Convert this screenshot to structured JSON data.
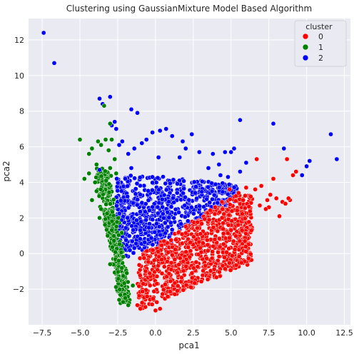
{
  "chart_data": {
    "type": "scatter",
    "title": "Clustering using GaussianMixture Model Based Algorithm",
    "xlabel": "pca1",
    "ylabel": "pca2",
    "xlim": [
      -8.4,
      12.9
    ],
    "ylim": [
      -4.0,
      13.2
    ],
    "xticks": [
      -7.5,
      -5.0,
      -2.5,
      0.0,
      2.5,
      5.0,
      7.5,
      10.0,
      12.5
    ],
    "xtick_labels": [
      "−7.5",
      "−5.0",
      "−2.5",
      "0.0",
      "2.5",
      "5.0",
      "7.5",
      "10.0",
      "12.5"
    ],
    "yticks": [
      -2,
      0,
      2,
      4,
      6,
      8,
      10,
      12
    ],
    "ytick_labels": [
      "−2",
      "0",
      "2",
      "4",
      "6",
      "8",
      "10",
      "12"
    ],
    "grid": true,
    "background": "#eaeaf2",
    "legend": {
      "title": "cluster",
      "position": "top-right",
      "entries": [
        "0",
        "1",
        "2"
      ]
    },
    "series": [
      {
        "name": "0",
        "color": "#ff0000",
        "regions": [
          {
            "count": 900,
            "x": [
              -1.2,
              6.0
            ],
            "yrange": "between",
            "lower": [
              -3.2,
              -1.0
            ],
            "upper": [
              0.0,
              1.5
            ],
            "note": "red wedge"
          }
        ],
        "points": [
          [
            6.6,
            3.6
          ],
          [
            7.0,
            3.8
          ],
          [
            7.4,
            3.0
          ],
          [
            7.6,
            3.3
          ],
          [
            8.0,
            3.1
          ],
          [
            8.4,
            2.9
          ],
          [
            8.2,
            2.1
          ],
          [
            8.6,
            2.8
          ],
          [
            8.9,
            3.0
          ],
          [
            8.7,
            5.3
          ],
          [
            9.3,
            4.6
          ],
          [
            9.1,
            4.4
          ],
          [
            7.8,
            4.2
          ],
          [
            7.5,
            2.6
          ],
          [
            6.9,
            2.7
          ],
          [
            6.3,
            3.2
          ],
          [
            5.8,
            3.0
          ],
          [
            6.0,
            3.7
          ],
          [
            5.5,
            3.4
          ],
          [
            4.9,
            3.6
          ],
          [
            4.4,
            2.9
          ],
          [
            6.7,
            5.3
          ],
          [
            7.3,
            2.5
          ],
          [
            8.8,
            3.1
          ],
          [
            -1.2,
            -2.9
          ],
          [
            -1.0,
            -3.1
          ],
          [
            0.3,
            -3.1
          ],
          [
            0.0,
            -3.2
          ]
        ]
      },
      {
        "name": "1",
        "color": "#008000",
        "regions": [
          {
            "count": 380,
            "note": "green strip"
          }
        ],
        "points": [
          [
            -3.4,
            8.3
          ],
          [
            -3.0,
            7.3
          ],
          [
            -3.3,
            6.4
          ],
          [
            -3.8,
            6.3
          ],
          [
            -3.6,
            6.1
          ],
          [
            -4.4,
            5.6
          ],
          [
            -4.2,
            5.9
          ],
          [
            -5.0,
            6.4
          ],
          [
            -4.7,
            4.2
          ],
          [
            -4.4,
            4.5
          ],
          [
            -4.0,
            4.0
          ],
          [
            -3.9,
            3.5
          ],
          [
            -4.2,
            3.0
          ],
          [
            -3.6,
            2.5
          ],
          [
            -2.9,
            6.4
          ],
          [
            -3.1,
            5.8
          ],
          [
            -2.7,
            5.3
          ],
          [
            -3.0,
            4.8
          ],
          [
            -2.6,
            4.5
          ],
          [
            -3.9,
            5.0
          ],
          [
            -3.7,
            2.0
          ],
          [
            -1.8,
            -2.9
          ],
          [
            -2.0,
            -2.5
          ],
          [
            -1.5,
            -1.8
          ],
          [
            -3.0,
            -0.6
          ]
        ]
      },
      {
        "name": "2",
        "color": "#0000ff",
        "regions": [
          {
            "count": 750,
            "note": "blue fan"
          }
        ],
        "points": [
          [
            -7.4,
            12.4
          ],
          [
            -6.7,
            10.7
          ],
          [
            -3.7,
            8.7
          ],
          [
            -3.0,
            8.8
          ],
          [
            -3.5,
            8.4
          ],
          [
            -2.7,
            7.4
          ],
          [
            -2.9,
            7.2
          ],
          [
            -2.6,
            7.0
          ],
          [
            -1.6,
            8.1
          ],
          [
            -1.2,
            7.9
          ],
          [
            -2.2,
            6.3
          ],
          [
            -2.4,
            6.1
          ],
          [
            -1.8,
            5.6
          ],
          [
            -1.4,
            5.9
          ],
          [
            -0.9,
            6.2
          ],
          [
            -0.6,
            6.4
          ],
          [
            -0.2,
            6.8
          ],
          [
            0.3,
            6.9
          ],
          [
            0.7,
            7.0
          ],
          [
            1.1,
            6.6
          ],
          [
            1.8,
            6.3
          ],
          [
            2.4,
            6.7
          ],
          [
            2.0,
            5.9
          ],
          [
            1.6,
            5.4
          ],
          [
            2.9,
            5.7
          ],
          [
            3.5,
            4.8
          ],
          [
            3.8,
            5.6
          ],
          [
            4.2,
            5.0
          ],
          [
            4.6,
            5.7
          ],
          [
            5.2,
            5.9
          ],
          [
            5.6,
            7.5
          ],
          [
            5.0,
            5.7
          ],
          [
            6.0,
            5.1
          ],
          [
            4.8,
            4.3
          ],
          [
            5.6,
            4.6
          ],
          [
            4.3,
            4.4
          ],
          [
            7.8,
            7.3
          ],
          [
            8.5,
            5.9
          ],
          [
            9.7,
            4.4
          ],
          [
            10.0,
            4.9
          ],
          [
            10.2,
            5.2
          ],
          [
            11.6,
            6.7
          ],
          [
            12.0,
            5.3
          ],
          [
            -3.7,
            4.7
          ],
          [
            -2.0,
            4.2
          ],
          [
            -1.6,
            4.8
          ],
          [
            0.2,
            5.4
          ],
          [
            -0.2,
            4.3
          ]
        ]
      }
    ]
  }
}
